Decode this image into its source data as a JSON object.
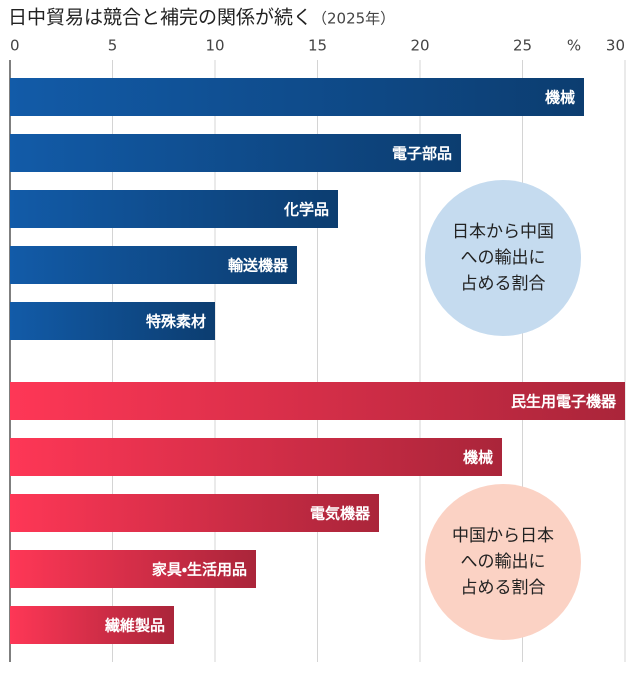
{
  "chart_data": [
    {
      "type": "hbar",
      "title": "日中貿易は競合と補完の関係が続く",
      "subtitle": "（2025年）",
      "unit": "%",
      "xlim": [
        0,
        30
      ],
      "xticks": [
        0,
        5,
        10,
        15,
        20,
        25,
        30
      ],
      "grid": true,
      "categories": [
        "機械",
        "電子部品",
        "化学品",
        "輸送機器",
        "特殊素材"
      ],
      "values": [
        28,
        22,
        16,
        14,
        10
      ],
      "color": "#0f4c8c",
      "annotation": [
        "日本から中国",
        "への輸出に",
        "占める割合"
      ],
      "annotation_color": "#c5dbef"
    },
    {
      "type": "hbar",
      "xlim": [
        0,
        30
      ],
      "categories": [
        "民生用電子機器",
        "機械",
        "電気機器",
        "家具・生活用品",
        "繊維製品"
      ],
      "values": [
        30,
        24,
        18,
        12,
        8
      ],
      "color": "#d42e48",
      "annotation": [
        "中国から日本",
        "への輸出に",
        "占める割合"
      ],
      "annotation_color": "#fbd2c4"
    }
  ]
}
